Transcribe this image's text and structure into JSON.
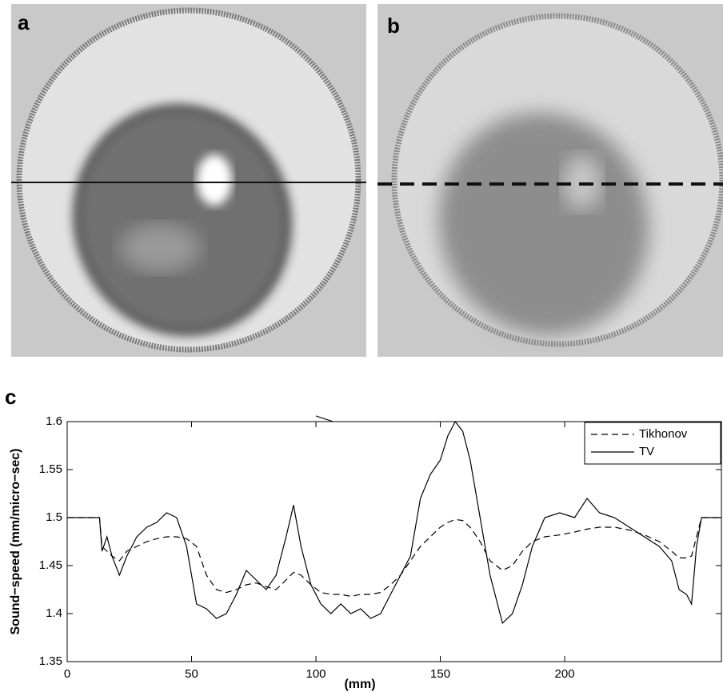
{
  "panel_labels": [
    "a",
    "b",
    "c"
  ],
  "chart_data": {
    "type": "line",
    "xlabel": "(mm)",
    "ylabel": "Sound−speed (mm/micro−sec)",
    "x": [
      0,
      13,
      14,
      16,
      18,
      21,
      24,
      28,
      32,
      36,
      40,
      44,
      48,
      52,
      56,
      60,
      64,
      68,
      72,
      76,
      80,
      84,
      88,
      91,
      94,
      98,
      102,
      106,
      110,
      114,
      118,
      122,
      126,
      130,
      134,
      138,
      142,
      146,
      150,
      153,
      156,
      159,
      162,
      166,
      170,
      175,
      179,
      183,
      187,
      192,
      198,
      204,
      209,
      214,
      220,
      226,
      232,
      238,
      243,
      246,
      249,
      251,
      253,
      255,
      263
    ],
    "series": [
      {
        "name": "Tikhonov",
        "color": "#000000",
        "linestyle": "dashed",
        "values": [
          1.5,
          1.5,
          1.47,
          1.465,
          1.46,
          1.455,
          1.465,
          1.47,
          1.475,
          1.478,
          1.48,
          1.48,
          1.478,
          1.47,
          1.44,
          1.425,
          1.422,
          1.425,
          1.43,
          1.432,
          1.428,
          1.425,
          1.435,
          1.443,
          1.44,
          1.43,
          1.422,
          1.42,
          1.42,
          1.418,
          1.42,
          1.42,
          1.422,
          1.43,
          1.44,
          1.455,
          1.47,
          1.48,
          1.49,
          1.495,
          1.498,
          1.497,
          1.49,
          1.475,
          1.455,
          1.445,
          1.45,
          1.465,
          1.475,
          1.48,
          1.482,
          1.485,
          1.488,
          1.49,
          1.49,
          1.487,
          1.482,
          1.475,
          1.465,
          1.458,
          1.458,
          1.46,
          1.48,
          1.5,
          1.5
        ]
      },
      {
        "name": "TV",
        "color": "#000000",
        "linestyle": "solid",
        "values": [
          1.5,
          1.5,
          1.465,
          1.48,
          1.46,
          1.44,
          1.46,
          1.48,
          1.49,
          1.495,
          1.505,
          1.5,
          1.47,
          1.41,
          1.405,
          1.395,
          1.4,
          1.42,
          1.445,
          1.435,
          1.425,
          1.44,
          1.48,
          1.513,
          1.47,
          1.43,
          1.41,
          1.4,
          1.41,
          1.4,
          1.405,
          1.395,
          1.4,
          1.42,
          1.44,
          1.46,
          1.52,
          1.545,
          1.56,
          1.585,
          1.6,
          1.59,
          1.56,
          1.5,
          1.44,
          1.39,
          1.4,
          1.43,
          1.47,
          1.5,
          1.505,
          1.5,
          1.52,
          1.505,
          1.5,
          1.49,
          1.48,
          1.47,
          1.455,
          1.425,
          1.42,
          1.41,
          1.47,
          1.5,
          1.5
        ]
      }
    ],
    "xlim": [
      0,
      263
    ],
    "ylim": [
      1.35,
      1.6
    ],
    "xticks": [
      0,
      50,
      100,
      150,
      200
    ],
    "yticks": [
      1.35,
      1.4,
      1.45,
      1.5,
      1.55,
      1.6
    ],
    "legend": "upper right"
  }
}
